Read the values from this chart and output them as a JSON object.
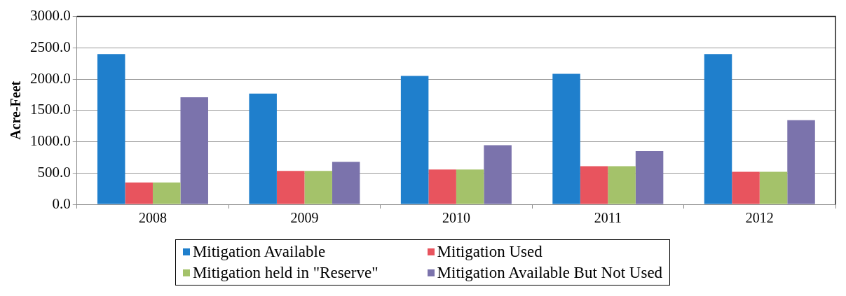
{
  "chart_data": {
    "type": "bar",
    "ylabel": "Acre-Feet",
    "categories": [
      "2008",
      "2009",
      "2010",
      "2011",
      "2012"
    ],
    "series": [
      {
        "name": "Mitigation Available",
        "color": "#1f7fcc",
        "values": [
          2400,
          1770,
          2050,
          2085,
          2400
        ]
      },
      {
        "name": "Mitigation Used",
        "color": "#e8545e",
        "values": [
          350,
          535,
          555,
          610,
          520
        ]
      },
      {
        "name": "Mitigation held in \"Reserve\"",
        "color": "#a4c26a",
        "values": [
          350,
          535,
          555,
          610,
          520
        ]
      },
      {
        "name": "Mitigation Available But Not Used",
        "color": "#7b73ac",
        "values": [
          1710,
          680,
          945,
          850,
          1345
        ]
      }
    ],
    "ylim": [
      0,
      3000
    ],
    "yticks": [
      {
        "value": 0,
        "label": "0.0"
      },
      {
        "value": 500,
        "label": "500.0"
      },
      {
        "value": 1000,
        "label": "1000.0"
      },
      {
        "value": 1500,
        "label": "1500.0"
      },
      {
        "value": 2000,
        "label": "2000.0"
      },
      {
        "value": 2500,
        "label": "2500.0"
      },
      {
        "value": 3000,
        "label": "3000.0"
      }
    ],
    "grid": "y",
    "legend": "bottom"
  }
}
